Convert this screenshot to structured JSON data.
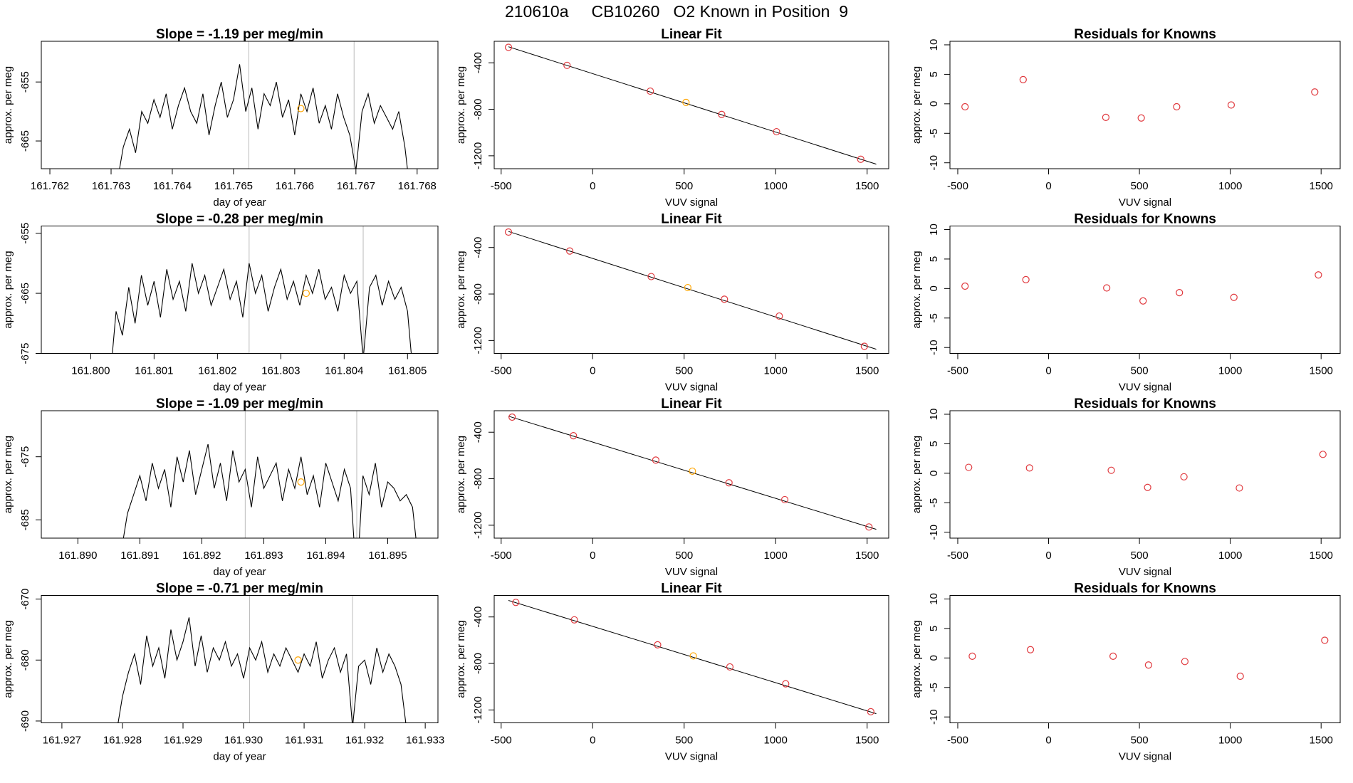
{
  "title": "210610a     CB10260   O2 Known in Position  9",
  "chart_data": [
    {
      "type": "line",
      "title": "Slope =  -1.19  per meg/min",
      "xlabel": "day of year",
      "ylabel": "approx. per meg",
      "xlim": [
        161.76186,
        161.76834
      ],
      "ylim": [
        -669.7,
        -648.1
      ],
      "xticks": [
        161.762,
        161.763,
        161.764,
        161.765,
        161.766,
        161.767,
        161.768
      ],
      "yticks": [
        -655,
        -665
      ],
      "x": [
        161.7631,
        161.7632,
        161.7633,
        161.7634,
        161.7635,
        161.7636,
        161.7637,
        161.7638,
        161.7639,
        161.764,
        161.7641,
        161.7642,
        161.7643,
        161.7644,
        161.7645,
        161.7646,
        161.7647,
        161.7648,
        161.7649,
        161.765,
        161.7651,
        161.7652,
        161.7653,
        161.7654,
        161.7655,
        161.7656,
        161.7657,
        161.7658,
        161.7659,
        161.766,
        161.7661,
        161.7662,
        161.7663,
        161.7664,
        161.7665,
        161.7666,
        161.7667,
        161.7668,
        161.7669,
        161.767,
        161.7671,
        161.7672,
        161.7673,
        161.7674,
        161.7675,
        161.7676,
        161.7677,
        161.7678,
        161.7679
      ],
      "series": [
        {
          "color": "#000000",
          "values": [
            -672,
            -666,
            -663,
            -667,
            -660,
            -662,
            -658,
            -661,
            -657,
            -663,
            -659,
            -656,
            -660,
            -662,
            -657,
            -664,
            -659,
            -655,
            -661,
            -658,
            -652,
            -660,
            -656,
            -663,
            -657,
            -659,
            -655,
            -661,
            -658,
            -664,
            -657,
            -660,
            -656,
            -662,
            -659,
            -663,
            -657,
            -661,
            -664,
            -670,
            -660,
            -657,
            -662,
            -659,
            -661,
            -663,
            -660,
            -666,
            -675
          ]
        }
      ],
      "vlines": [
        161.76525,
        161.76697
      ],
      "vline_color": "#bbbbbb",
      "highlight": {
        "x": 161.7661,
        "y": -659.5,
        "color": "#ffa500"
      }
    },
    {
      "type": "scatter",
      "title": "Linear Fit",
      "xlabel": "VUV signal",
      "ylabel": "approx. per meg",
      "xlim": [
        -538,
        1618
      ],
      "ylim": [
        -1311,
        -215
      ],
      "xticks": [
        -500,
        0,
        500,
        1000,
        1500
      ],
      "yticks": [
        -400,
        -800,
        -1200
      ],
      "x": [
        -460,
        -140,
        315,
        510,
        705,
        1005,
        1465
      ],
      "values": [
        -267,
        -422,
        -644,
        -741,
        -844,
        -993,
        -1230
      ],
      "colors": [
        "#e0393e",
        "#e0393e",
        "#e0393e",
        "#ffa500",
        "#e0393e",
        "#e0393e",
        "#e0393e"
      ],
      "fit_line": {
        "x": [
          -460,
          1550
        ],
        "y": [
          -262,
          -1272
        ]
      }
    },
    {
      "type": "scatter",
      "title": "Residuals for Knowns",
      "xlabel": "VUV signal",
      "ylabel": "approx. per meg",
      "xlim": [
        -543,
        1605
      ],
      "ylim": [
        -11,
        10.6
      ],
      "xticks": [
        -500,
        0,
        500,
        1000,
        1500
      ],
      "yticks": [
        -10,
        -5,
        0,
        5,
        10
      ],
      "x": [
        -460,
        -140,
        315,
        510,
        705,
        1005,
        1465
      ],
      "values": [
        -0.5,
        4.1,
        -2.3,
        -2.4,
        -0.5,
        -0.2,
        2.0
      ],
      "colors": [
        "#e0393e",
        "#e0393e",
        "#e0393e",
        "#e0393e",
        "#e0393e",
        "#e0393e",
        "#e0393e"
      ]
    },
    {
      "type": "line",
      "title": "Slope =  -0.28  per meg/min",
      "xlabel": "day of year",
      "ylabel": "approx. per meg",
      "xlim": [
        161.79922,
        161.80548
      ],
      "ylim": [
        -675,
        -653.8
      ],
      "xticks": [
        {
          "value": 161.8,
          "label": "161.800"
        },
        161.801,
        161.802,
        161.803,
        161.804,
        161.805
      ],
      "yticks": [
        -655,
        -665,
        -675
      ],
      "x": [
        161.8003,
        161.8004,
        161.8005,
        161.8006,
        161.8007,
        161.8008,
        161.8009,
        161.801,
        161.8011,
        161.8012,
        161.8013,
        161.8014,
        161.8015,
        161.8016,
        161.8017,
        161.8018,
        161.8019,
        161.802,
        161.8021,
        161.8022,
        161.8023,
        161.8024,
        161.8025,
        161.8026,
        161.8027,
        161.8028,
        161.8029,
        161.803,
        161.8031,
        161.8032,
        161.8033,
        161.8034,
        161.8035,
        161.8036,
        161.8037,
        161.8038,
        161.8039,
        161.804,
        161.8041,
        161.8042,
        161.8043,
        161.8044,
        161.8045,
        161.8046,
        161.8047,
        161.8048,
        161.8049,
        161.805,
        161.8051
      ],
      "series": [
        {
          "color": "#000000",
          "values": [
            -680,
            -668,
            -672,
            -664,
            -670,
            -662,
            -667,
            -663,
            -669,
            -661,
            -666,
            -663,
            -668,
            -660,
            -665,
            -662,
            -667,
            -664,
            -661,
            -666,
            -663,
            -669,
            -660,
            -665,
            -662,
            -668,
            -664,
            -661,
            -666,
            -663,
            -667,
            -662,
            -665,
            -661,
            -666,
            -664,
            -668,
            -662,
            -665,
            -663,
            -676,
            -664,
            -662,
            -667,
            -663,
            -666,
            -664,
            -668,
            -680
          ]
        }
      ],
      "vlines": [
        161.8025,
        161.8043
      ],
      "vline_color": "#bbbbbb",
      "highlight": {
        "x": 161.8034,
        "y": -665,
        "color": "#ffa500"
      }
    },
    {
      "type": "scatter",
      "title": "Linear Fit",
      "xlabel": "VUV signal",
      "ylabel": "approx. per meg",
      "xlim": [
        -538,
        1618
      ],
      "ylim": [
        -1311,
        -215
      ],
      "xticks": [
        -500,
        0,
        500,
        1000,
        1500
      ],
      "yticks": [
        -400,
        -800,
        -1200
      ],
      "x": [
        -460,
        -125,
        320,
        520,
        720,
        1020,
        1485
      ],
      "values": [
        -267,
        -430,
        -650,
        -745,
        -845,
        -990,
        -1250
      ],
      "colors": [
        "#e0393e",
        "#e0393e",
        "#e0393e",
        "#ffa500",
        "#e0393e",
        "#e0393e",
        "#e0393e"
      ],
      "fit_line": {
        "x": [
          -460,
          1550
        ],
        "y": [
          -262,
          -1275
        ]
      }
    },
    {
      "type": "scatter",
      "title": "Residuals for Knowns",
      "xlabel": "VUV signal",
      "ylabel": "approx. per meg",
      "xlim": [
        -543,
        1605
      ],
      "ylim": [
        -11,
        10.6
      ],
      "xticks": [
        -500,
        0,
        500,
        1000,
        1500
      ],
      "yticks": [
        -10,
        -5,
        0,
        5,
        10
      ],
      "x": [
        -460,
        -125,
        320,
        520,
        720,
        1020,
        1485
      ],
      "values": [
        0.4,
        1.5,
        0.1,
        -2.1,
        -0.7,
        -1.5,
        2.3
      ],
      "colors": [
        "#e0393e",
        "#e0393e",
        "#e0393e",
        "#e0393e",
        "#e0393e",
        "#e0393e",
        "#e0393e"
      ]
    },
    {
      "type": "line",
      "title": "Slope =  -1.09  per meg/min",
      "xlabel": "day of year",
      "ylabel": "approx. per meg",
      "xlim": [
        161.88941,
        161.89581
      ],
      "ylim": [
        -687.9,
        -667.7
      ],
      "xticks": [
        {
          "value": 161.89,
          "label": "161.890"
        },
        161.891,
        161.892,
        161.893,
        161.894,
        161.895
      ],
      "yticks": [
        -675,
        -685
      ],
      "x": [
        161.8907,
        161.8908,
        161.8909,
        161.891,
        161.8911,
        161.8912,
        161.8913,
        161.8914,
        161.8915,
        161.8916,
        161.8917,
        161.8918,
        161.8919,
        161.892,
        161.8921,
        161.8922,
        161.8923,
        161.8924,
        161.8925,
        161.8926,
        161.8927,
        161.8928,
        161.8929,
        161.893,
        161.8931,
        161.8932,
        161.8933,
        161.8934,
        161.8935,
        161.8936,
        161.8937,
        161.8938,
        161.8939,
        161.894,
        161.8941,
        161.8942,
        161.8943,
        161.8944,
        161.8945,
        161.8946,
        161.8947,
        161.8948,
        161.8949,
        161.895,
        161.8951,
        161.8952,
        161.8953,
        161.8954,
        161.8955
      ],
      "series": [
        {
          "color": "#000000",
          "values": [
            -690,
            -684,
            -681,
            -678,
            -682,
            -676,
            -680,
            -677,
            -683,
            -675,
            -679,
            -674,
            -681,
            -677,
            -673,
            -680,
            -676,
            -682,
            -674,
            -679,
            -677,
            -683,
            -675,
            -680,
            -678,
            -676,
            -682,
            -677,
            -680,
            -675,
            -681,
            -678,
            -683,
            -676,
            -679,
            -682,
            -677,
            -680,
            -695,
            -678,
            -681,
            -676,
            -683,
            -679,
            -680,
            -682,
            -681,
            -683,
            -692
          ]
        }
      ],
      "vlines": [
        161.8927,
        161.8945
      ],
      "vline_color": "#bbbbbb",
      "highlight": {
        "x": 161.8936,
        "y": -679,
        "color": "#ffa500"
      }
    },
    {
      "type": "scatter",
      "title": "Linear Fit",
      "xlabel": "VUV signal",
      "ylabel": "approx. per meg",
      "xlim": [
        -538,
        1618
      ],
      "ylim": [
        -1311,
        -215
      ],
      "xticks": [
        -500,
        0,
        500,
        1000,
        1500
      ],
      "yticks": [
        -400,
        -800,
        -1200
      ],
      "x": [
        -440,
        -105,
        345,
        545,
        745,
        1050,
        1510
      ],
      "values": [
        -270,
        -430,
        -640,
        -735,
        -835,
        -980,
        -1215
      ],
      "colors": [
        "#e0393e",
        "#e0393e",
        "#e0393e",
        "#ffa500",
        "#e0393e",
        "#e0393e",
        "#e0393e"
      ],
      "fit_line": {
        "x": [
          -460,
          1550
        ],
        "y": [
          -262,
          -1235
        ]
      }
    },
    {
      "type": "scatter",
      "title": "Residuals for Knowns",
      "xlabel": "VUV signal",
      "ylabel": "approx. per meg",
      "xlim": [
        -543,
        1605
      ],
      "ylim": [
        -11,
        10.6
      ],
      "xticks": [
        -500,
        0,
        500,
        1000,
        1500
      ],
      "yticks": [
        -10,
        -5,
        0,
        5,
        10
      ],
      "x": [
        -440,
        -105,
        345,
        545,
        745,
        1050,
        1510
      ],
      "values": [
        1.0,
        0.9,
        0.5,
        -2.4,
        -0.6,
        -2.5,
        3.2
      ],
      "colors": [
        "#e0393e",
        "#e0393e",
        "#e0393e",
        "#e0393e",
        "#e0393e",
        "#e0393e",
        "#e0393e"
      ]
    },
    {
      "type": "line",
      "title": "Slope =  -0.71  per meg/min",
      "xlabel": "day of year",
      "ylabel": "approx. per meg",
      "xlim": [
        161.92666,
        161.93321
      ],
      "ylim": [
        -690.3,
        -669.4
      ],
      "xticks": [
        161.927,
        161.928,
        161.929,
        {
          "value": 161.93,
          "label": "161.930"
        },
        161.931,
        161.932,
        161.933
      ],
      "yticks": [
        -670,
        -680,
        -690
      ],
      "x": [
        161.9279,
        161.928,
        161.9281,
        161.9282,
        161.9283,
        161.9284,
        161.9285,
        161.9286,
        161.9287,
        161.9288,
        161.9289,
        161.929,
        161.9291,
        161.9292,
        161.9293,
        161.9294,
        161.9295,
        161.9296,
        161.9297,
        161.9298,
        161.9299,
        161.93,
        161.9301,
        161.9302,
        161.9303,
        161.9304,
        161.9305,
        161.9306,
        161.9307,
        161.9308,
        161.9309,
        161.931,
        161.9311,
        161.9312,
        161.9313,
        161.9314,
        161.9315,
        161.9316,
        161.9317,
        161.9318,
        161.9319,
        161.932,
        161.9321,
        161.9322,
        161.9323,
        161.9324,
        161.9325,
        161.9326,
        161.9327
      ],
      "series": [
        {
          "color": "#000000",
          "values": [
            -692,
            -686,
            -682,
            -679,
            -684,
            -676,
            -681,
            -678,
            -683,
            -675,
            -680,
            -677,
            -673,
            -681,
            -676,
            -682,
            -678,
            -680,
            -677,
            -681,
            -679,
            -683,
            -678,
            -680,
            -677,
            -682,
            -679,
            -681,
            -678,
            -680,
            -682,
            -679,
            -681,
            -677,
            -683,
            -680,
            -678,
            -682,
            -679,
            -691,
            -681,
            -680,
            -684,
            -678,
            -682,
            -679,
            -681,
            -684,
            -692
          ]
        }
      ],
      "vlines": [
        161.9301,
        161.9318
      ],
      "vline_color": "#bbbbbb",
      "highlight": {
        "x": 161.9309,
        "y": -680,
        "color": "#ffa500"
      }
    },
    {
      "type": "scatter",
      "title": "Linear Fit",
      "xlabel": "VUV signal",
      "ylabel": "approx. per meg",
      "xlim": [
        -538,
        1618
      ],
      "ylim": [
        -1311,
        -215
      ],
      "xticks": [
        -500,
        0,
        500,
        1000,
        1500
      ],
      "yticks": [
        -400,
        -800,
        -1200
      ],
      "x": [
        -420,
        -100,
        355,
        550,
        750,
        1055,
        1520
      ],
      "values": [
        -275,
        -425,
        -640,
        -735,
        -830,
        -975,
        -1215
      ],
      "colors": [
        "#e0393e",
        "#e0393e",
        "#e0393e",
        "#ffa500",
        "#e0393e",
        "#e0393e",
        "#e0393e"
      ],
      "fit_line": {
        "x": [
          -460,
          1550
        ],
        "y": [
          -258,
          -1232
        ]
      }
    },
    {
      "type": "scatter",
      "title": "Residuals for Knowns",
      "xlabel": "VUV signal",
      "ylabel": "approx. per meg",
      "xlim": [
        -543,
        1605
      ],
      "ylim": [
        -11,
        10.6
      ],
      "xticks": [
        -500,
        0,
        500,
        1000,
        1500
      ],
      "yticks": [
        -10,
        -5,
        0,
        5,
        10
      ],
      "x": [
        -420,
        -100,
        355,
        550,
        750,
        1055,
        1520
      ],
      "values": [
        0.3,
        1.4,
        0.3,
        -1.2,
        -0.6,
        -3.1,
        3.0
      ],
      "colors": [
        "#e0393e",
        "#e0393e",
        "#e0393e",
        "#e0393e",
        "#e0393e",
        "#e0393e",
        "#e0393e"
      ]
    }
  ]
}
